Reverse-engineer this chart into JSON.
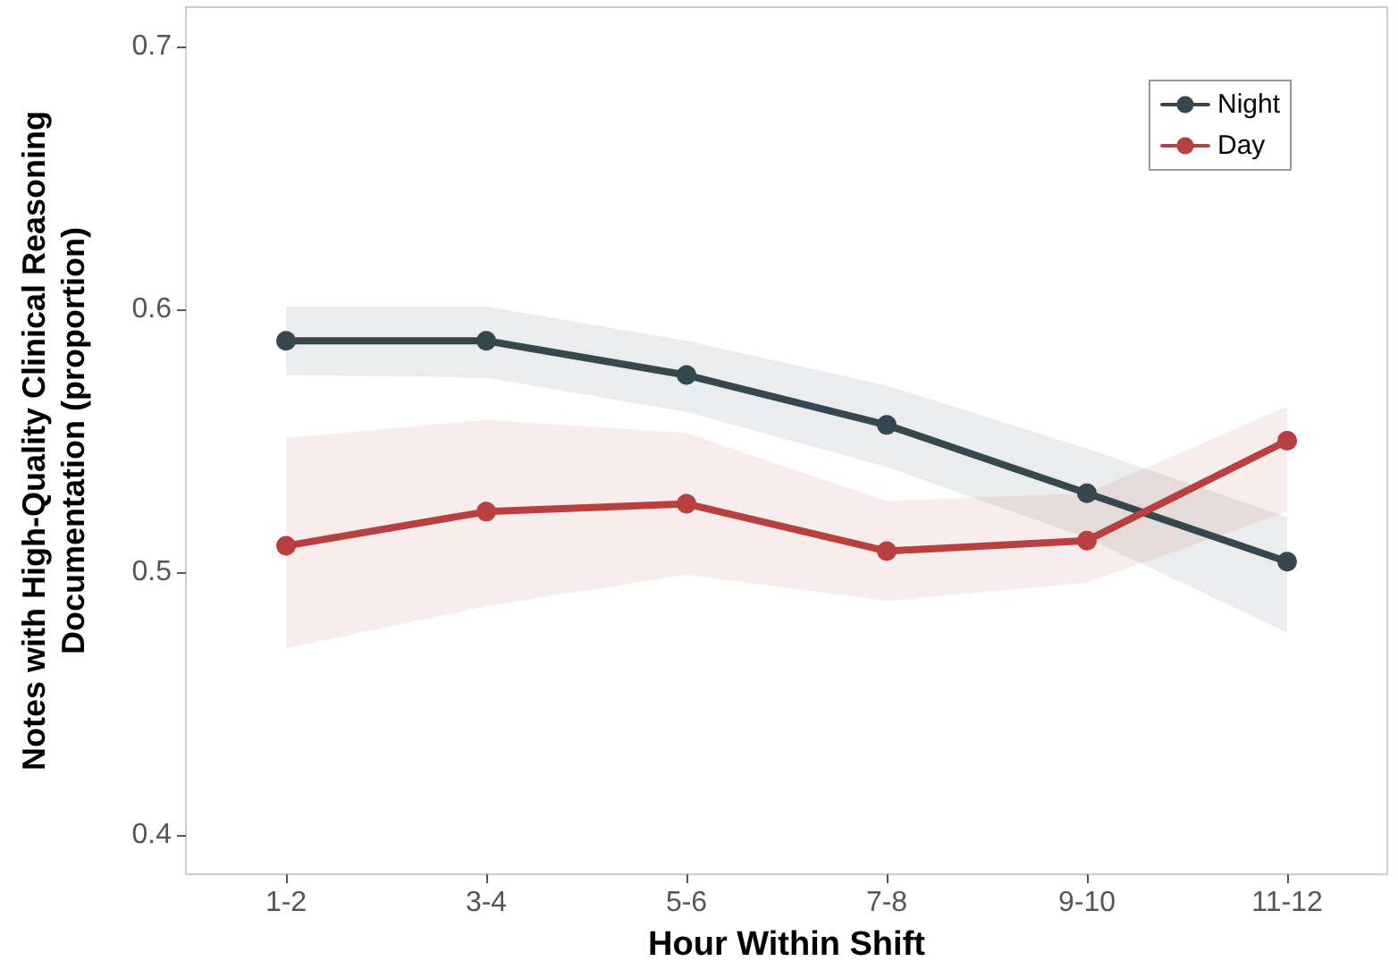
{
  "chart_data": {
    "type": "line",
    "xlabel": "Hour Within Shift",
    "ylabel": "Notes with High-Quality Clinical Reasoning Documentation (proportion)",
    "categories": [
      "1-2",
      "3-4",
      "5-6",
      "7-8",
      "9-10",
      "11-12"
    ],
    "series": [
      {
        "name": "Night",
        "color": "#37474f",
        "values": [
          0.588,
          0.588,
          0.575,
          0.556,
          0.53,
          0.504
        ],
        "lower": [
          0.575,
          0.574,
          0.561,
          0.54,
          0.513,
          0.477
        ],
        "upper": [
          0.601,
          0.601,
          0.588,
          0.571,
          0.547,
          0.521
        ]
      },
      {
        "name": "Day",
        "color": "#b94040",
        "values": [
          0.51,
          0.523,
          0.526,
          0.508,
          0.512,
          0.55
        ],
        "lower": [
          0.471,
          0.487,
          0.499,
          0.489,
          0.496,
          0.523
        ],
        "upper": [
          0.551,
          0.558,
          0.553,
          0.527,
          0.53,
          0.563
        ]
      }
    ],
    "ylim": [
      0.385,
      0.715
    ],
    "yticks": [
      0.4,
      0.5,
      0.6,
      0.7
    ],
    "grid": false,
    "legend": "top right",
    "marker": "circle",
    "line_style": "solid"
  }
}
